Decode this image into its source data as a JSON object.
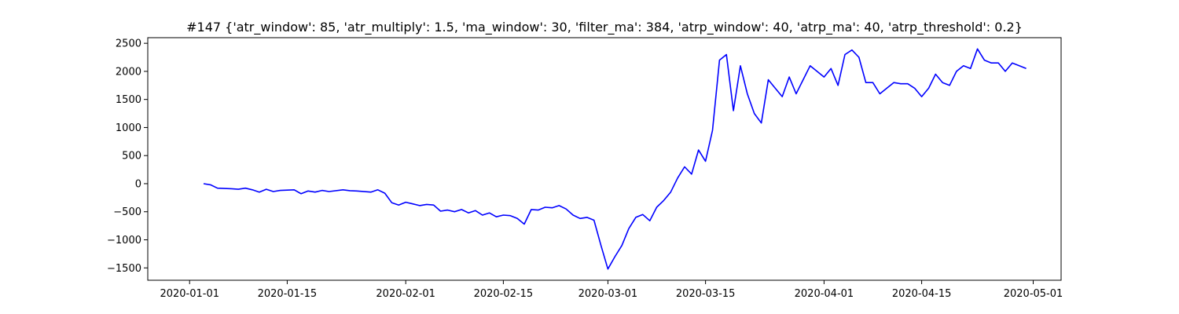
{
  "chart_data": {
    "type": "line",
    "title": "#147 {'atr_window': 85, 'atr_multiply': 1.5, 'ma_window': 30, 'filter_ma': 384, 'atrp_window': 40, 'atrp_ma': 40, 'atrp_threshold': 0.2}",
    "xlabel": "",
    "ylabel": "",
    "x_tick_labels": [
      "2020-01-01",
      "2020-01-15",
      "2020-02-01",
      "2020-02-15",
      "2020-03-01",
      "2020-03-15",
      "2020-04-01",
      "2020-04-15",
      "2020-05-01"
    ],
    "y_tick_labels": [
      "2500",
      "2000",
      "1500",
      "1000",
      "500",
      "0",
      "−500",
      "−1000",
      "−1500"
    ],
    "xlim": [
      "2019-12-26",
      "2020-05-05"
    ],
    "ylim": [
      -1720,
      2600
    ],
    "grid": false,
    "legend": "none",
    "colors": {
      "line": "#0000ff",
      "axes": "#000000",
      "background": "#ffffff"
    },
    "series": [
      {
        "x": [
          "2020-01-03",
          "2020-01-04",
          "2020-01-05",
          "2020-01-07",
          "2020-01-08",
          "2020-01-09",
          "2020-01-10",
          "2020-01-11",
          "2020-01-12",
          "2020-01-13",
          "2020-01-14",
          "2020-01-16",
          "2020-01-17",
          "2020-01-18",
          "2020-01-19",
          "2020-01-20",
          "2020-01-21",
          "2020-01-23",
          "2020-01-24",
          "2020-01-25",
          "2020-01-27",
          "2020-01-28",
          "2020-01-29",
          "2020-01-30",
          "2020-01-31",
          "2020-02-01",
          "2020-02-02",
          "2020-02-03",
          "2020-02-04",
          "2020-02-05",
          "2020-02-06",
          "2020-02-07",
          "2020-02-08",
          "2020-02-09",
          "2020-02-10",
          "2020-02-11",
          "2020-02-12",
          "2020-02-13",
          "2020-02-14",
          "2020-02-15",
          "2020-02-16",
          "2020-02-17",
          "2020-02-18",
          "2020-02-19",
          "2020-02-20",
          "2020-02-21",
          "2020-02-22",
          "2020-02-23",
          "2020-02-24",
          "2020-02-25",
          "2020-02-26",
          "2020-02-27",
          "2020-02-28",
          "2020-02-29",
          "2020-03-01",
          "2020-03-02",
          "2020-03-03",
          "2020-03-04",
          "2020-03-05",
          "2020-03-06",
          "2020-03-07",
          "2020-03-08",
          "2020-03-09",
          "2020-03-10",
          "2020-03-11",
          "2020-03-12",
          "2020-03-13",
          "2020-03-14",
          "2020-03-15",
          "2020-03-16",
          "2020-03-17",
          "2020-03-18",
          "2020-03-19",
          "2020-03-20",
          "2020-03-21",
          "2020-03-22",
          "2020-03-23",
          "2020-03-24",
          "2020-03-25",
          "2020-03-26",
          "2020-03-27",
          "2020-03-28",
          "2020-03-29",
          "2020-03-30",
          "2020-03-31",
          "2020-04-01",
          "2020-04-02",
          "2020-04-03",
          "2020-04-04",
          "2020-04-05",
          "2020-04-06",
          "2020-04-07",
          "2020-04-08",
          "2020-04-09",
          "2020-04-10",
          "2020-04-11",
          "2020-04-12",
          "2020-04-13",
          "2020-04-14",
          "2020-04-15",
          "2020-04-16",
          "2020-04-17",
          "2020-04-18",
          "2020-04-19",
          "2020-04-20",
          "2020-04-21",
          "2020-04-22",
          "2020-04-23",
          "2020-04-24",
          "2020-04-25",
          "2020-04-26",
          "2020-04-27",
          "2020-04-28",
          "2020-04-29",
          "2020-04-30"
        ],
        "y": [
          0,
          -20,
          -80,
          -90,
          -100,
          -80,
          -110,
          -150,
          -100,
          -140,
          -120,
          -110,
          -180,
          -130,
          -150,
          -120,
          -140,
          -110,
          -125,
          -130,
          -150,
          -110,
          -170,
          -340,
          -380,
          -330,
          -360,
          -390,
          -370,
          -380,
          -490,
          -470,
          -500,
          -460,
          -520,
          -480,
          -560,
          -520,
          -590,
          -560,
          -570,
          -620,
          -720,
          -460,
          -470,
          -420,
          -430,
          -390,
          -450,
          -560,
          -620,
          -600,
          -650,
          -1100,
          -1520,
          -1300,
          -1100,
          -800,
          -600,
          -550,
          -660,
          -420,
          -300,
          -150,
          100,
          300,
          170,
          600,
          400,
          950,
          2200,
          2300,
          1300,
          2100,
          1600,
          1250,
          1080,
          1850,
          1700,
          1550,
          1900,
          1600,
          1850,
          2100,
          2000,
          1900,
          2050,
          1750,
          2300,
          2380,
          2250,
          1800,
          1800,
          1600,
          1700,
          1800,
          1780,
          1780,
          1700,
          1550,
          1700,
          1950,
          1800,
          1750,
          2000,
          2100,
          2050,
          2400,
          2200,
          2150,
          2150,
          2000,
          2150,
          2100,
          2050
        ]
      }
    ]
  }
}
